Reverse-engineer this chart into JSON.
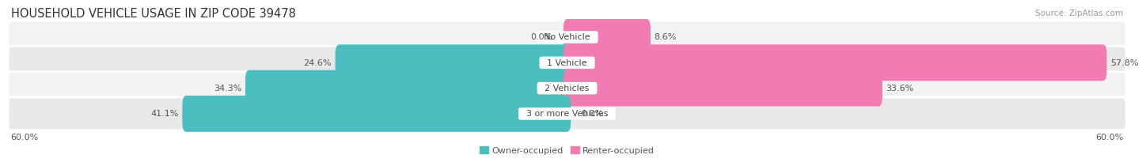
{
  "title": "HOUSEHOLD VEHICLE USAGE IN ZIP CODE 39478",
  "source": "Source: ZipAtlas.com",
  "categories": [
    "No Vehicle",
    "1 Vehicle",
    "2 Vehicles",
    "3 or more Vehicles"
  ],
  "owner_values": [
    0.0,
    24.6,
    34.3,
    41.1
  ],
  "renter_values": [
    8.6,
    57.8,
    33.6,
    0.0
  ],
  "owner_color": "#4BBFC0",
  "renter_color": "#F07CB2",
  "row_bg_colors": [
    "#F2F2F2",
    "#E8E8E8",
    "#F2F2F2",
    "#E8E8E8"
  ],
  "max_value": 60.0,
  "axis_label_left": "60.0%",
  "axis_label_right": "60.0%",
  "legend_owner": "Owner-occupied",
  "legend_renter": "Renter-occupied",
  "title_fontsize": 10.5,
  "source_fontsize": 7.5,
  "label_fontsize": 8,
  "category_fontsize": 8,
  "axis_tick_fontsize": 8,
  "background_color": "#FFFFFF"
}
